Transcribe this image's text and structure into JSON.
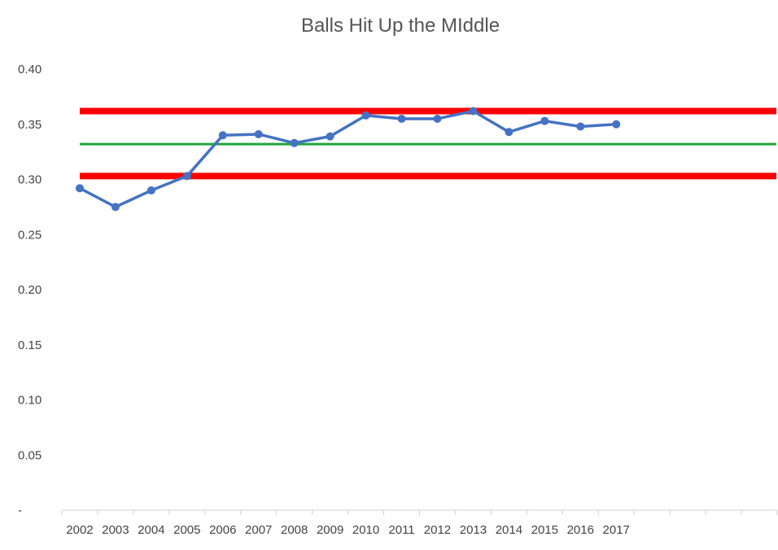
{
  "chart_data": {
    "type": "line",
    "title": "Balls Hit Up the MIddle",
    "categories": [
      "2002",
      "2003",
      "2004",
      "2005",
      "2006",
      "2007",
      "2008",
      "2009",
      "2010",
      "2011",
      "2012",
      "2013",
      "2014",
      "2015",
      "2016",
      "2017"
    ],
    "series": [
      {
        "values": [
          0.292,
          0.275,
          0.29,
          0.303,
          0.34,
          0.341,
          0.333,
          0.339,
          0.358,
          0.355,
          0.355,
          0.362,
          0.343,
          0.353,
          0.348,
          0.35
        ],
        "color": "#4472c4"
      }
    ],
    "reference_lines": [
      {
        "value": 0.362,
        "color": "#ff0000"
      },
      {
        "value": 0.332,
        "color": "#22a33a"
      },
      {
        "value": 0.303,
        "color": "#ff0000"
      }
    ],
    "yticks": [
      "-",
      "0.05",
      "0.10",
      "0.15",
      "0.20",
      "0.25",
      "0.30",
      "0.35",
      "0.40"
    ],
    "ylim": [
      0,
      0.4
    ],
    "category_slots": 20,
    "grid": false,
    "legend": "none"
  }
}
